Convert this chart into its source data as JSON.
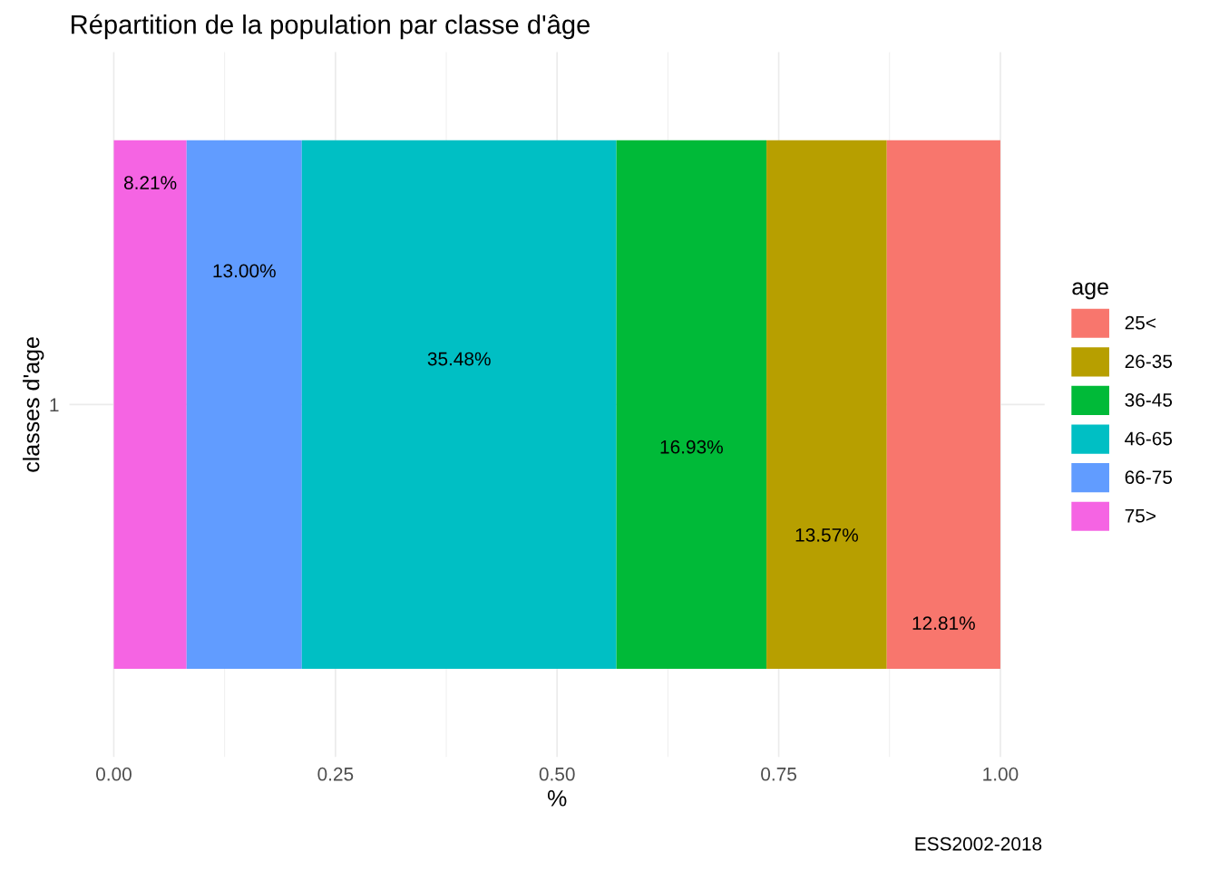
{
  "chart_data": {
    "type": "bar",
    "orientation": "horizontal",
    "stacked": true,
    "title": "Répartition de la population par classe d'âge",
    "xlabel": "%",
    "ylabel": "classes d'age",
    "legend_title": "age",
    "annotations": [
      "ESS2002-2018"
    ],
    "categories": [
      "1"
    ],
    "series": [
      {
        "name": "75>",
        "color": "#f564e3",
        "values": [
          0.0821
        ],
        "value_labels": [
          "8.21%"
        ]
      },
      {
        "name": "66-75",
        "color": "#619cff",
        "values": [
          0.13
        ],
        "value_labels": [
          "13.00%"
        ]
      },
      {
        "name": "46-65",
        "color": "#00bfc4",
        "values": [
          0.3548
        ],
        "value_labels": [
          "35.48%"
        ]
      },
      {
        "name": "36-45",
        "color": "#00ba38",
        "values": [
          0.1693
        ],
        "value_labels": [
          "16.93%"
        ]
      },
      {
        "name": "26-35",
        "color": "#b79f00",
        "values": [
          0.1357
        ],
        "value_labels": [
          "13.57%"
        ]
      },
      {
        "name": "25<",
        "color": "#f8766d",
        "values": [
          0.1281
        ],
        "value_labels": [
          "12.81%"
        ]
      }
    ],
    "xlim": [
      -0.05,
      1.05
    ],
    "xticks": [
      {
        "value": 0,
        "label": "0.00"
      },
      {
        "value": 0.25,
        "label": "0.25"
      },
      {
        "value": 0.5,
        "label": "0.50"
      },
      {
        "value": 0.75,
        "label": "0.75"
      },
      {
        "value": 1,
        "label": "1.00"
      }
    ],
    "grid": true,
    "legend": "right"
  }
}
